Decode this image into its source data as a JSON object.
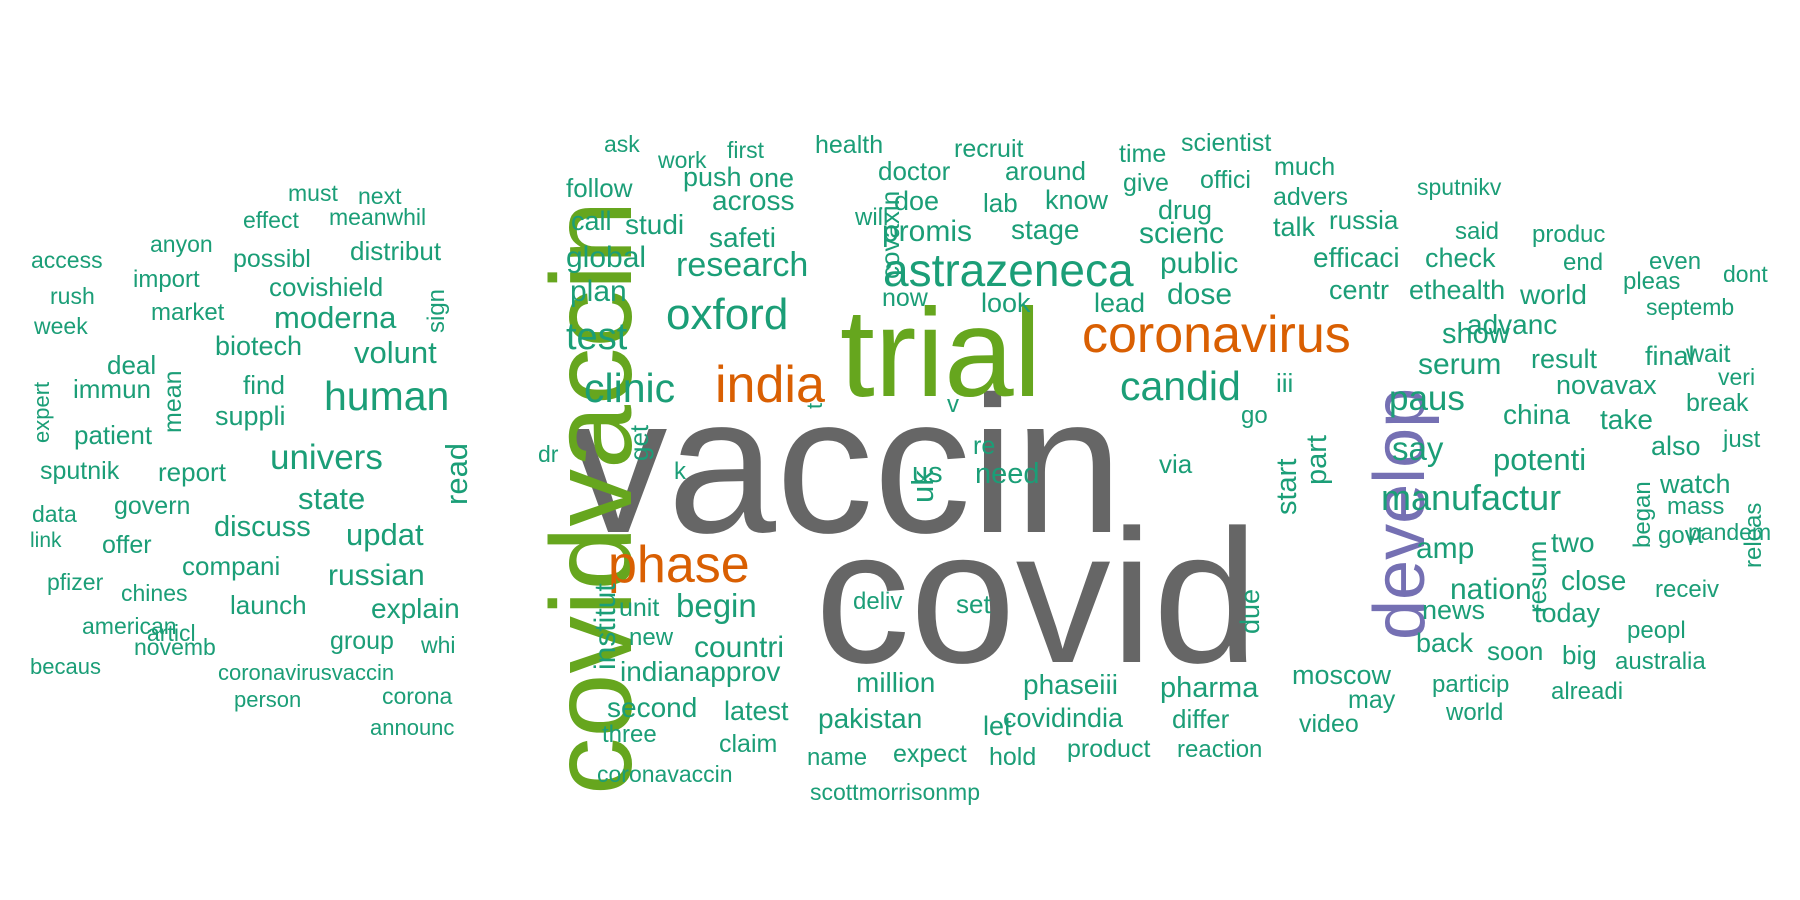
{
  "wordcloud": {
    "palette": {
      "vaccin": "#666666",
      "covid": "#666666",
      "trial": "#66a61e",
      "covidvaccin": "#66a61e",
      "india": "#d95f02",
      "phase": "#d95f02",
      "coronavirus": "#d95f02",
      "develop": "#7570b3",
      "other": "#1b9e77"
    },
    "words": [
      "vaccin",
      "covid",
      "trial",
      "covidvaccin",
      "develop",
      "india",
      "phase",
      "coronavirus",
      "astrazeneca",
      "oxford",
      "clinic",
      "human",
      "test",
      "candid",
      "manufactur",
      "univers",
      "paus",
      "say",
      "potenti",
      "moderna",
      "volunt",
      "research",
      "global",
      "plan",
      "begin",
      "countri",
      "updat",
      "state",
      "read",
      "institut",
      "russian",
      "explain",
      "discuss",
      "uk",
      "us",
      "need",
      "start",
      "part",
      "nation",
      "amp",
      "serum",
      "show",
      "advanc",
      "result",
      "china",
      "take",
      "dose",
      "public",
      "scienc",
      "drug",
      "lead",
      "look",
      "stage",
      "promis",
      "safeti",
      "studi",
      "across",
      "call",
      "follow",
      "push",
      "one",
      "doctor",
      "doe",
      "health",
      "covaxin",
      "recruit",
      "around",
      "know",
      "lab",
      "give",
      "time",
      "scientist",
      "offici",
      "much",
      "advers",
      "russia",
      "talk",
      "efficaci",
      "check",
      "centr",
      "ethealth",
      "world",
      "sputnikv",
      "said",
      "produc",
      "end",
      "even",
      "dont",
      "pleas",
      "septemb",
      "wait",
      "veri",
      "final",
      "novavax",
      "break",
      "also",
      "just",
      "watch",
      "mass",
      "pandem",
      "began",
      "govt",
      "receiv",
      "releas",
      "two",
      "close",
      "today",
      "news",
      "resum",
      "back",
      "soon",
      "big",
      "peopl",
      "australia",
      "alreadi",
      "particip",
      "moscow",
      "may",
      "video",
      "world",
      "pharma",
      "differ",
      "reaction",
      "phaseiii",
      "covidindia",
      "product",
      "let",
      "million",
      "pakistan",
      "expect",
      "hold",
      "name",
      "scottmorrisonmp",
      "latest",
      "claim",
      "second",
      "three",
      "coronavaccin",
      "indianapprov",
      "new",
      "unit",
      "deliv",
      "set",
      "due",
      "iii",
      "go",
      "re",
      "via",
      "k",
      "dr",
      "v",
      "get",
      "t",
      "now",
      "will",
      "sign",
      "mean",
      "biotech",
      "suppli",
      "find",
      "patient",
      "immun",
      "deal",
      "market",
      "import",
      "covishield",
      "distribut",
      "possibl",
      "anyon",
      "effect",
      "meanwhil",
      "must",
      "next",
      "ask",
      "work",
      "first",
      "access",
      "rush",
      "week",
      "expert",
      "sputnik",
      "report",
      "data",
      "govern",
      "link",
      "offer",
      "compani",
      "pfizer",
      "chines",
      "launch",
      "american",
      "articl",
      "group",
      "whi",
      "novemb",
      "becaus",
      "coronavirusvaccin",
      "corona",
      "person",
      "announc"
    ]
  }
}
